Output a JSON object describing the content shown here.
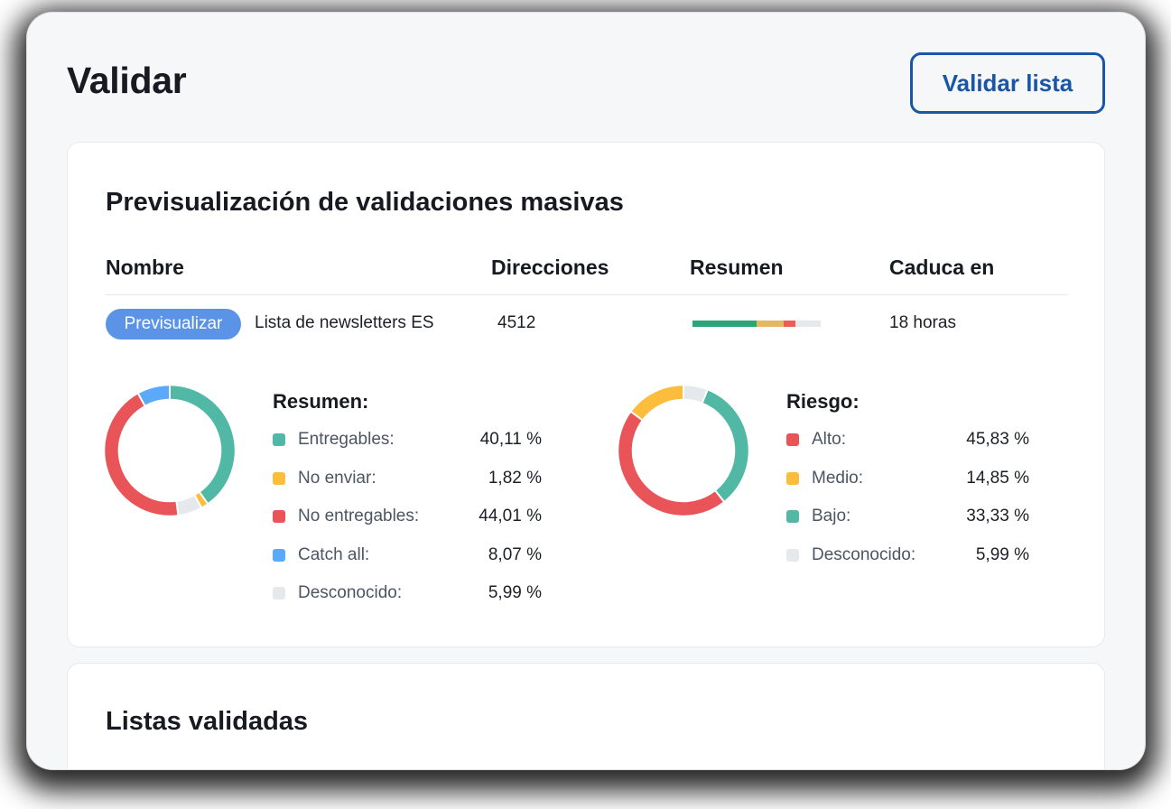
{
  "page": {
    "title": "Validar",
    "primary_button": "Validar lista"
  },
  "preview_card": {
    "title": "Previsualización de validaciones masivas",
    "columns": [
      "Nombre",
      "Direcciones",
      "Resumen",
      "Caduca en"
    ],
    "row": {
      "action": "Previsualizar",
      "name": "Lista de newsletters ES",
      "addresses": "4512",
      "expires": "18 horas",
      "summary_bar": [
        {
          "color": "#2ba57a",
          "pct": 50
        },
        {
          "color": "#e3b865",
          "pct": 21
        },
        {
          "color": "#ef5a5a",
          "pct": 9
        },
        {
          "color": "#e6e9ec",
          "pct": 20
        }
      ]
    }
  },
  "colors": {
    "teal": "#52b8a6",
    "amber": "#fbbd3b",
    "red": "#e85458",
    "blue": "#5aa9fb",
    "grey": "#e6e9ec",
    "accent": "#1a56a6",
    "pill": "#5b94e6"
  },
  "summary_legend": {
    "title": "Resumen:",
    "items": [
      {
        "label": "Entregables:",
        "value": "40,11 %",
        "color": "#52b8a6"
      },
      {
        "label": "No enviar:",
        "value": "1,82 %",
        "color": "#fbbd3b"
      },
      {
        "label": "No entregables:",
        "value": "44,01 %",
        "color": "#e85458"
      },
      {
        "label": "Catch all:",
        "value": "8,07 %",
        "color": "#5aa9fb"
      },
      {
        "label": "Desconocido:",
        "value": "5,99 %",
        "color": "#e6e9ec"
      }
    ]
  },
  "risk_legend": {
    "title": "Riesgo:",
    "items": [
      {
        "label": "Alto:",
        "value": "45,83 %",
        "color": "#e85458"
      },
      {
        "label": "Medio:",
        "value": "14,85 %",
        "color": "#fbbd3b"
      },
      {
        "label": "Bajo:",
        "value": "33,33 %",
        "color": "#52b8a6"
      },
      {
        "label": "Desconocido:",
        "value": "5,99 %",
        "color": "#e6e9ec"
      }
    ]
  },
  "chart_data": [
    {
      "type": "pie",
      "title": "Resumen:",
      "categories": [
        "Entregables",
        "No enviar",
        "Desconocido",
        "No entregables",
        "Catch all"
      ],
      "values": [
        40.11,
        1.82,
        5.99,
        44.01,
        8.07
      ],
      "colors": [
        "#52b8a6",
        "#fbbd3b",
        "#e6e9ec",
        "#e85458",
        "#5aa9fb"
      ],
      "style": "donut, clockwise from top"
    },
    {
      "type": "pie",
      "title": "Riesgo:",
      "categories": [
        "Desconocido",
        "Bajo",
        "Alto",
        "Medio"
      ],
      "values": [
        5.99,
        33.33,
        45.83,
        14.85
      ],
      "colors": [
        "#e6e9ec",
        "#52b8a6",
        "#e85458",
        "#fbbd3b"
      ],
      "style": "donut, clockwise from top"
    }
  ],
  "validated_card": {
    "title": "Listas validadas"
  }
}
